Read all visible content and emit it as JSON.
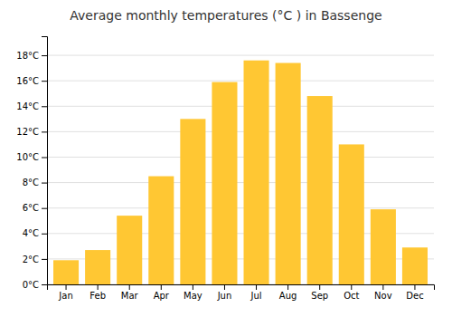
{
  "chart_data": {
    "type": "bar",
    "title": "Average monthly temperatures (°C ) in Bassenge",
    "categories": [
      "Jan",
      "Feb",
      "Mar",
      "Apr",
      "May",
      "Jun",
      "Jul",
      "Aug",
      "Sep",
      "Oct",
      "Nov",
      "Dec"
    ],
    "values": [
      1.9,
      2.7,
      5.4,
      8.5,
      13.0,
      15.9,
      17.6,
      17.4,
      14.8,
      11.0,
      5.9,
      2.9
    ],
    "color": "#FFC733",
    "ylim": [
      0,
      19.5
    ],
    "yticks": [
      {
        "value": 0,
        "label": "0°C"
      },
      {
        "value": 2,
        "label": "2°C"
      },
      {
        "value": 4,
        "label": "4°C"
      },
      {
        "value": 6,
        "label": "6°C"
      },
      {
        "value": 8,
        "label": "8°C"
      },
      {
        "value": 10,
        "label": "10°C"
      },
      {
        "value": 12,
        "label": "12°C"
      },
      {
        "value": 14,
        "label": "14°C"
      },
      {
        "value": 16,
        "label": "16°C"
      },
      {
        "value": 18,
        "label": "18°C"
      }
    ],
    "grid": true
  }
}
